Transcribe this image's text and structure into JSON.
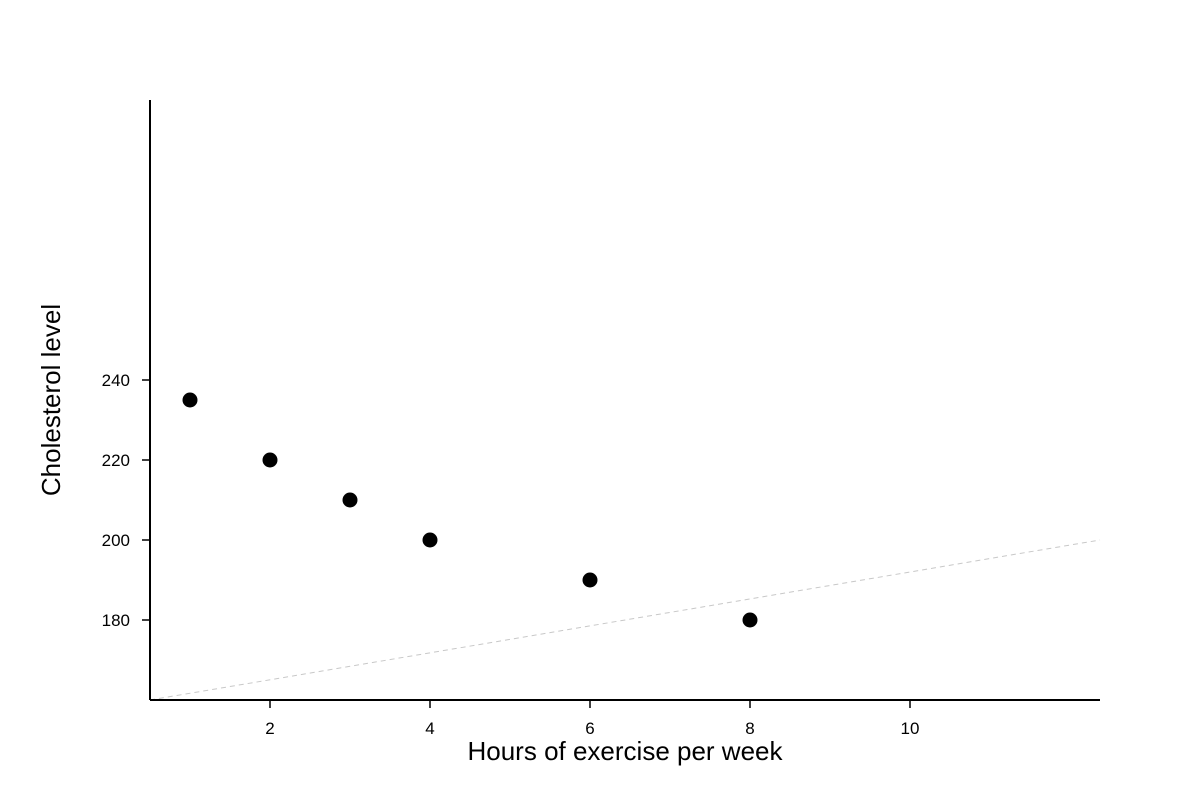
{
  "chart_data": {
    "type": "scatter",
    "title": "",
    "xlabel": "Hours of exercise per week",
    "ylabel": "Cholesterol level",
    "xlim": [
      0.5,
      12.375
    ],
    "ylim": [
      160,
      310
    ],
    "x_ticks": [
      2,
      4,
      6,
      8,
      10
    ],
    "y_ticks": [
      180,
      200,
      220,
      240
    ],
    "grid": false,
    "x": [
      1,
      2,
      3,
      4,
      6,
      8
    ],
    "y": [
      235,
      220,
      210,
      200,
      190,
      180
    ],
    "reference_line": {
      "x": [
        0.5,
        12.375
      ],
      "y": [
        160,
        200
      ],
      "style": "dashed"
    },
    "colors": {
      "points": "#000000",
      "axes": "#000000",
      "reference_line": "#c8c8c8"
    }
  }
}
